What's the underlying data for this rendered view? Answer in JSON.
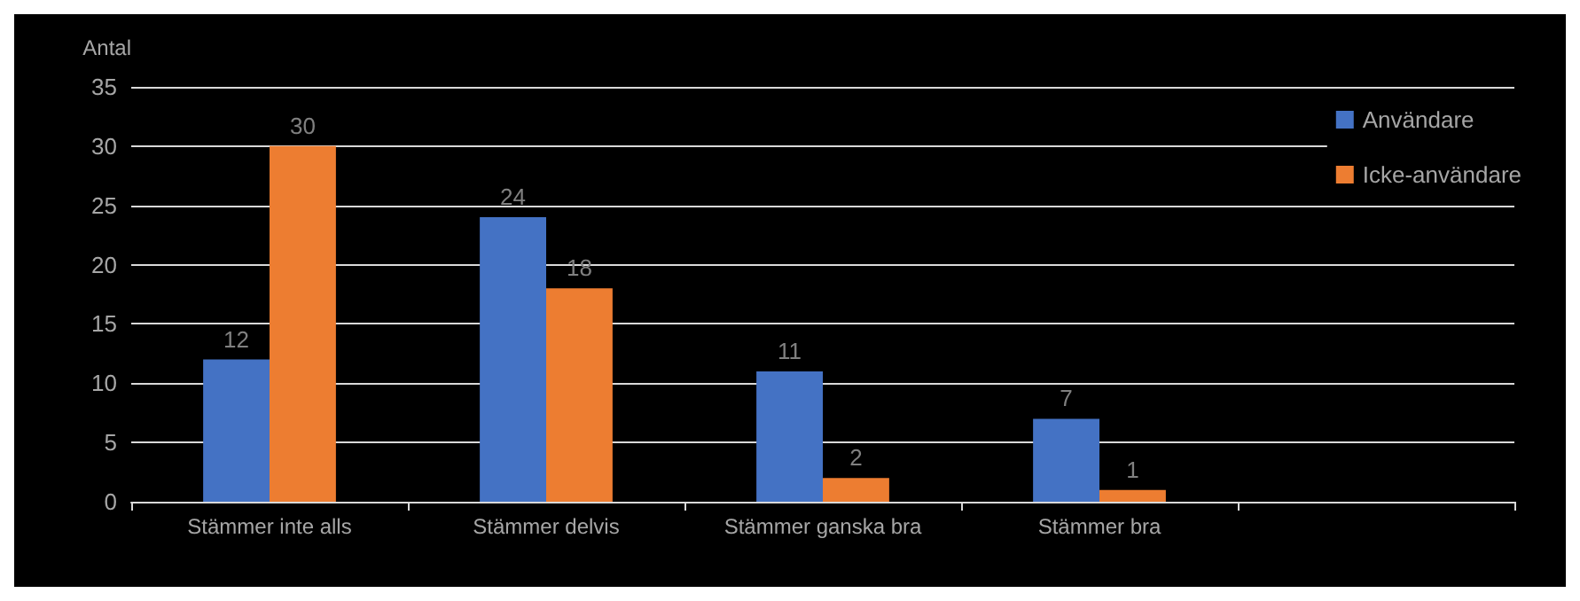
{
  "chart_data": {
    "type": "bar",
    "ylabel": "Antal",
    "categories": [
      "Stämmer inte alls",
      "Stämmer delvis",
      "Stämmer ganska bra",
      "Stämmer bra",
      null
    ],
    "series": [
      {
        "name": "Användare",
        "color": "#4472c4",
        "values": [
          12,
          24,
          11,
          7,
          null
        ]
      },
      {
        "name": "Icke-användare",
        "color": "#ed7d31",
        "values": [
          30,
          18,
          2,
          1,
          null
        ]
      }
    ],
    "ylim": [
      0,
      35
    ],
    "yticks": [
      0,
      5,
      10,
      15,
      20,
      25,
      30,
      35
    ],
    "grid": "y",
    "legend": "top right",
    "data_labels": true
  }
}
